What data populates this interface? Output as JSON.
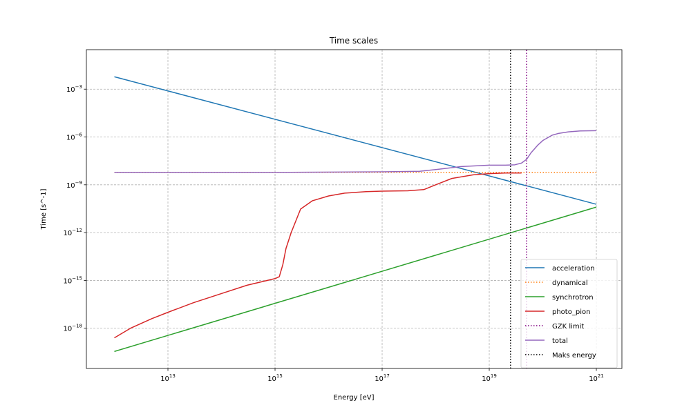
{
  "chart_data": {
    "type": "line",
    "title": "Time scales",
    "xlabel": "Energy [eV]",
    "ylabel": "Time [s^-1]",
    "xscale": "log",
    "yscale": "log",
    "xlim": [
      300000000000.0,
      3e+21
    ],
    "ylim": [
      3e-21,
      0.3
    ],
    "grid": true,
    "legend_position": "lower right",
    "x_ticks": [
      {
        "value": 10000000000000.0,
        "base": "10",
        "exp": "13"
      },
      {
        "value": 1000000000000000.0,
        "base": "10",
        "exp": "15"
      },
      {
        "value": 1e+17,
        "base": "10",
        "exp": "17"
      },
      {
        "value": 1e+19,
        "base": "10",
        "exp": "19"
      },
      {
        "value": 1e+21,
        "base": "10",
        "exp": "21"
      }
    ],
    "y_ticks": [
      {
        "value": 1e-18,
        "base": "10",
        "exp": "−18"
      },
      {
        "value": 1e-15,
        "base": "10",
        "exp": "−15"
      },
      {
        "value": 1e-12,
        "base": "10",
        "exp": "−12"
      },
      {
        "value": 1e-09,
        "base": "10",
        "exp": "−9"
      },
      {
        "value": 1e-06,
        "base": "10",
        "exp": "−6"
      },
      {
        "value": 0.001,
        "base": "10",
        "exp": "−3"
      }
    ],
    "series": [
      {
        "name": "acceleration",
        "color": "#1f77b4",
        "style": "solid",
        "x": [
          1000000000000.0,
          1e+21
        ],
        "y": [
          0.006,
          6e-11
        ]
      },
      {
        "name": "dynamical",
        "color": "#ff7f0e",
        "style": "dotted",
        "x": [
          1000000000000.0,
          1e+21
        ],
        "y": [
          6e-09,
          6e-09
        ]
      },
      {
        "name": "synchrotron",
        "color": "#2ca02c",
        "style": "solid",
        "x": [
          1000000000000.0,
          1e+21
        ],
        "y": [
          3.5e-20,
          4e-11
        ]
      },
      {
        "name": "photo_pion",
        "color": "#d62728",
        "style": "solid",
        "x": [
          1000000000000.0,
          2000000000000.0,
          5000000000000.0,
          10000000000000.0,
          30000000000000.0,
          100000000000000.0,
          300000000000000.0,
          1000000000000000.0,
          1200000000000000.0,
          1400000000000000.0,
          1600000000000000.0,
          2000000000000000.0,
          3000000000000000.0,
          5000000000000000.0,
          1e+16,
          2e+16,
          5e+16,
          1e+17,
          3e+17,
          6e+17,
          1e+18,
          2e+18,
          5e+18,
          1e+19,
          2e+19,
          3e+19,
          4e+19
        ],
        "y": [
          2.5e-19,
          1e-18,
          4e-18,
          1e-17,
          4e-17,
          1.5e-16,
          5e-16,
          1.3e-15,
          1.7e-15,
          1e-14,
          1e-13,
          1e-12,
          3e-11,
          1e-10,
          2e-10,
          3e-10,
          3.7e-10,
          4e-10,
          4.2e-10,
          5e-10,
          1e-09,
          2.5e-09,
          4.2e-09,
          5e-09,
          5.5e-09,
          5.5e-09,
          5.5e-09
        ]
      },
      {
        "name": "GZK limit",
        "color": "#800080",
        "style": "dotted",
        "x": [
          5e+19,
          5e+19
        ],
        "y": [
          3e-21,
          0.3
        ]
      },
      {
        "name": "total",
        "color": "#9467bd",
        "style": "solid",
        "x": [
          1000000000000.0,
          1000000000000000.0,
          1e+17,
          5e+17,
          1e+18,
          3e+18,
          1e+19,
          2e+19,
          3e+19,
          4e+19,
          5e+19,
          6e+19,
          8e+19,
          1e+20,
          1.5e+20,
          2e+20,
          3e+20,
          5e+20,
          1e+21
        ],
        "y": [
          6e-09,
          6e-09,
          6.5e-09,
          7e-09,
          9e-09,
          1.4e-08,
          1.7e-08,
          1.7e-08,
          1.8e-08,
          2.3e-08,
          4e-08,
          1e-07,
          3e-07,
          6e-07,
          1.3e-06,
          1.7e-06,
          2.1e-06,
          2.4e-06,
          2.5e-06
        ]
      },
      {
        "name": "Maks energy",
        "color": "#000000",
        "style": "dotted",
        "x": [
          2.5e+19,
          2.5e+19
        ],
        "y": [
          3e-21,
          0.3
        ]
      }
    ]
  }
}
